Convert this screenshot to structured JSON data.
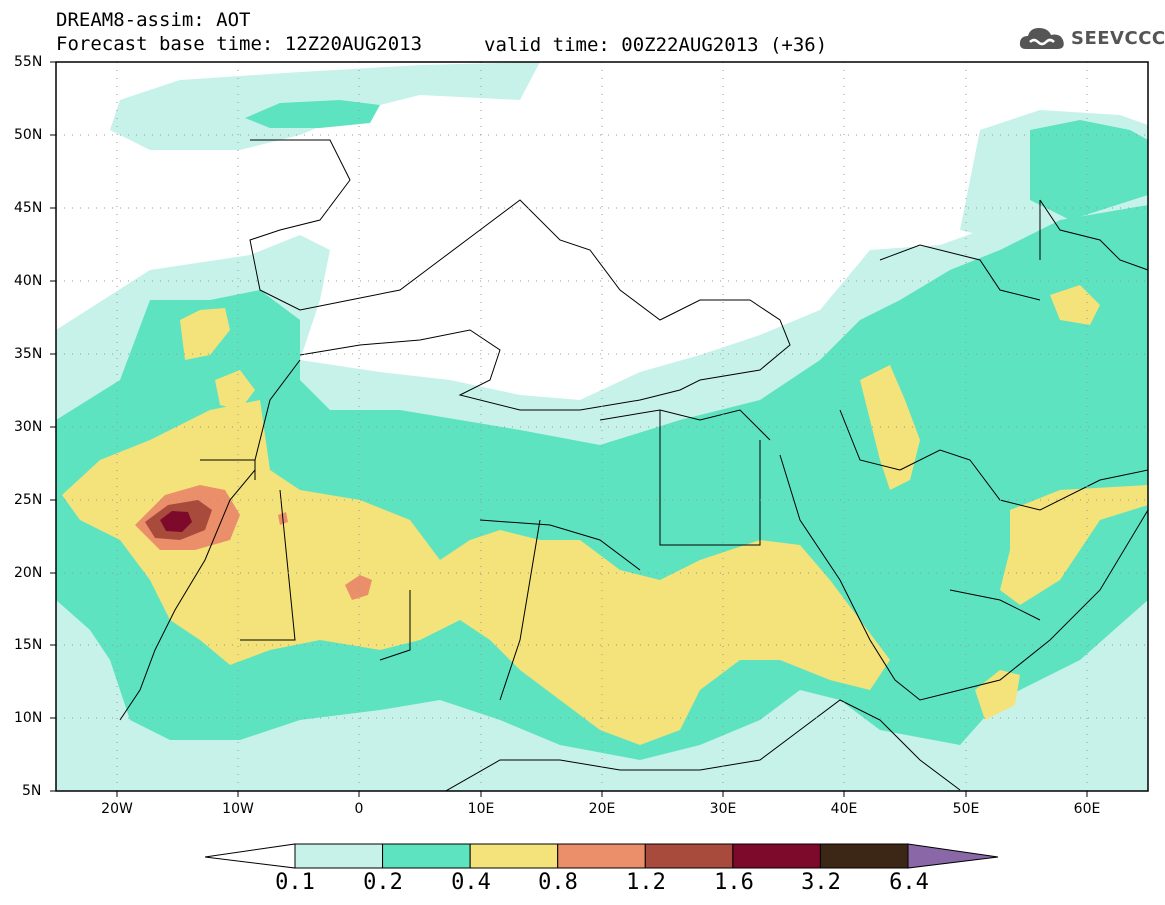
{
  "header": {
    "title_line1": "DREAM8-assim: AOT",
    "title_line2": "Forecast base time: 12Z20AUG2013",
    "valid_time": "valid time: 00Z22AUG2013 (+36)"
  },
  "logo": {
    "text": "SEEVCCC",
    "icon": "cloud-icon"
  },
  "map": {
    "lat_labels": [
      "55N",
      "50N",
      "45N",
      "40N",
      "35N",
      "30N",
      "25N",
      "20N",
      "15N",
      "10N",
      "5N"
    ],
    "lon_labels": [
      "20W",
      "10W",
      "0",
      "10E",
      "20E",
      "30E",
      "40E",
      "50E",
      "60E"
    ],
    "lon_range": [
      -25,
      65
    ],
    "lat_range": [
      5,
      55
    ],
    "grid": "dotted"
  },
  "colorbar": {
    "levels": [
      "0.1",
      "0.2",
      "0.4",
      "0.8",
      "1.2",
      "1.6",
      "3.2",
      "6.4"
    ],
    "colors": [
      "#ffffff",
      "#c7f2ea",
      "#5ee3c0",
      "#f4e27a",
      "#eb8f6a",
      "#a84b3c",
      "#7d0a2a",
      "#3c2716",
      "#8a68a8"
    ]
  }
}
